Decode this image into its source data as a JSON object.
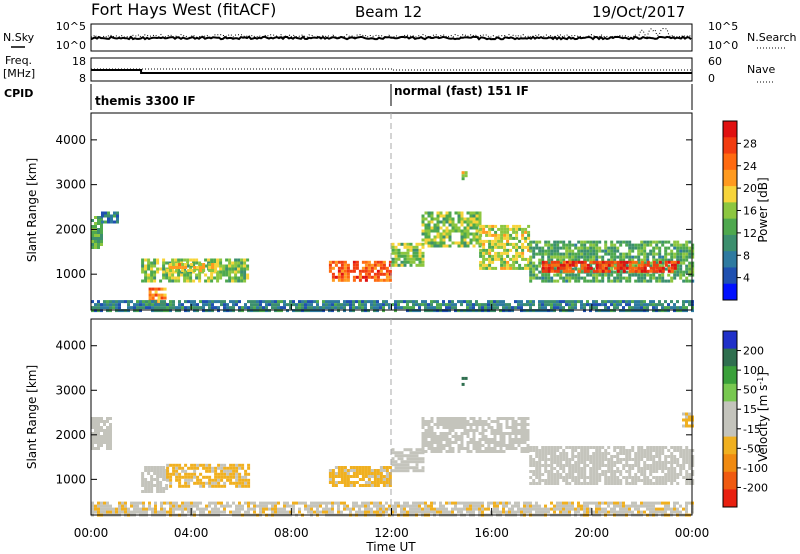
{
  "header": {
    "site": "Fort Hays West (fitACF)",
    "beam": "Beam 12",
    "date": "19/Oct/2017"
  },
  "nsky_panel": {
    "left_label": "N.Sky",
    "right_label": "N.Search",
    "left_ticks": [
      "10^5",
      "10^0"
    ],
    "right_ticks": [
      "10^5",
      "10^0"
    ]
  },
  "freq_panel": {
    "left_label_1": "Freq.",
    "left_label_2": "[MHz]",
    "right_label": "Nave",
    "left_ticks": [
      18,
      8
    ],
    "right_ticks": [
      60,
      0
    ]
  },
  "cpid_panel": {
    "label": "CPID",
    "modes": [
      {
        "name": "themis 3300 IF",
        "start_hour": 0
      },
      {
        "name": "normal (fast) 151 IF",
        "start_hour": 12
      }
    ]
  },
  "x_axis": {
    "label": "Time UT",
    "ticks": [
      "00:00",
      "04:00",
      "08:00",
      "12:00",
      "16:00",
      "20:00",
      "00:00"
    ],
    "hours": [
      0,
      4,
      8,
      12,
      16,
      20,
      24
    ],
    "range": [
      0,
      24
    ]
  },
  "colors": {
    "power": [
      "#0010ff",
      "#1f50b0",
      "#2e7aa0",
      "#3c8f6e",
      "#4ea84e",
      "#8cc63f",
      "#f7d43a",
      "#ff9a1f",
      "#ff6a10",
      "#f23c10",
      "#e01010"
    ],
    "velocity": [
      "#2030c8",
      "#2f6f4f",
      "#3aa03a",
      "#78c850",
      "#c4c4bc",
      "#c4c4bc",
      "#f0b020",
      "#f08a10",
      "#f05a10",
      "#e82010"
    ]
  },
  "chart_data": [
    {
      "type": "heatmap",
      "title": "Power",
      "ylabel": "Slant Range [km]",
      "ylim": [
        200,
        4600
      ],
      "yticks": [
        1000,
        2000,
        3000,
        4000
      ],
      "colorbar": {
        "label": "Power [dB]",
        "ticks": [
          "28",
          "24",
          "20",
          "16",
          "12",
          "8",
          "4"
        ],
        "range": [
          0,
          30
        ]
      },
      "regions": [
        {
          "t0": 0.0,
          "t1": 0.4,
          "r0": 1600,
          "r1": 2300,
          "level": 12
        },
        {
          "t0": 0.4,
          "t1": 1.0,
          "r0": 2150,
          "r1": 2400,
          "level": 8
        },
        {
          "t0": 2.0,
          "t1": 6.3,
          "r0": 850,
          "r1": 1350,
          "level": 14
        },
        {
          "t0": 3.0,
          "t1": 5.0,
          "r0": 1050,
          "r1": 1250,
          "level": 18
        },
        {
          "t0": 2.3,
          "t1": 2.9,
          "r0": 350,
          "r1": 700,
          "level": 22
        },
        {
          "t0": 9.5,
          "t1": 12.0,
          "r0": 850,
          "r1": 1300,
          "level": 24
        },
        {
          "t0": 12.0,
          "t1": 13.2,
          "r0": 1200,
          "r1": 1700,
          "level": 14
        },
        {
          "t0": 13.2,
          "t1": 15.5,
          "r0": 1650,
          "r1": 2400,
          "level": 14
        },
        {
          "t0": 15.5,
          "t1": 17.5,
          "r0": 1100,
          "r1": 2100,
          "level": 16
        },
        {
          "t0": 17.5,
          "t1": 24.0,
          "r0": 850,
          "r1": 1750,
          "level": 12
        },
        {
          "t0": 18.0,
          "t1": 23.5,
          "r0": 1050,
          "r1": 1300,
          "level": 26
        },
        {
          "t0": 14.8,
          "t1": 15.0,
          "r0": 3100,
          "r1": 3300,
          "level": 16
        },
        {
          "t0": 0.0,
          "t1": 24.0,
          "r0": 200,
          "r1": 420,
          "level": 8
        }
      ]
    },
    {
      "type": "heatmap",
      "title": "Velocity",
      "ylabel": "Slant Range [km]",
      "ylim": [
        200,
        4600
      ],
      "yticks": [
        1000,
        2000,
        3000,
        4000
      ],
      "colorbar": {
        "label": "Velocity [m s^-1]",
        "ticks": [
          "200",
          "100",
          "50",
          "15",
          "-15",
          "-50",
          "-100",
          "-200"
        ],
        "range": [
          -250,
          250
        ]
      },
      "regions": [
        {
          "t0": 0.0,
          "t1": 0.8,
          "r0": 1700,
          "r1": 2400,
          "level": 0
        },
        {
          "t0": 2.0,
          "t1": 3.0,
          "r0": 700,
          "r1": 1300,
          "level": 0
        },
        {
          "t0": 3.0,
          "t1": 6.3,
          "r0": 850,
          "r1": 1350,
          "level": -60
        },
        {
          "t0": 9.5,
          "t1": 12.0,
          "r0": 850,
          "r1": 1300,
          "level": -60
        },
        {
          "t0": 12.0,
          "t1": 13.2,
          "r0": 1200,
          "r1": 1700,
          "level": -20
        },
        {
          "t0": 13.2,
          "t1": 17.5,
          "r0": 1600,
          "r1": 2400,
          "level": 0
        },
        {
          "t0": 17.5,
          "t1": 24.0,
          "r0": 900,
          "r1": 1750,
          "level": 0
        },
        {
          "t0": 14.8,
          "t1": 15.0,
          "r0": 3150,
          "r1": 3300,
          "level": 200
        },
        {
          "t0": 0.0,
          "t1": 24.0,
          "r0": 200,
          "r1": 500,
          "level": -40
        },
        {
          "t0": 23.6,
          "t1": 24.0,
          "r0": 2200,
          "r1": 2500,
          "level": -60
        }
      ]
    }
  ]
}
